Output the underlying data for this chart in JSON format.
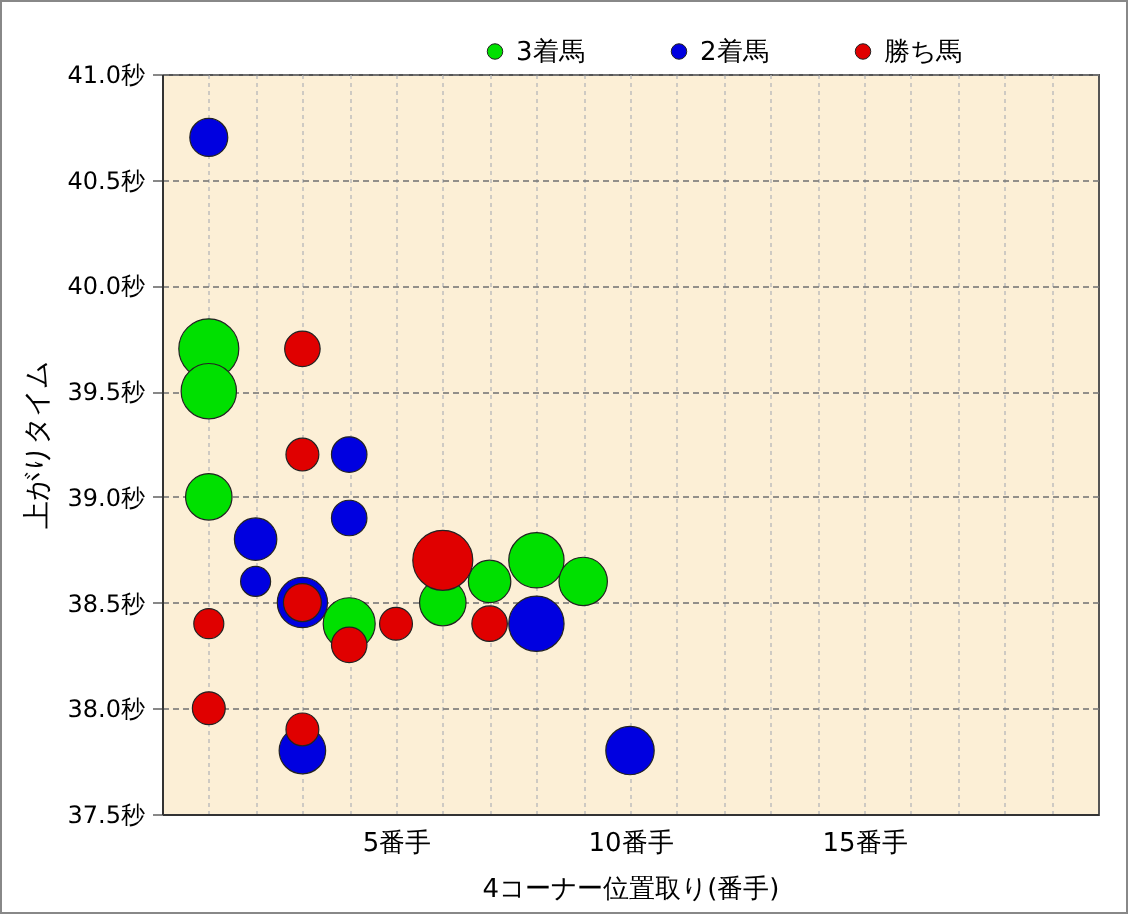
{
  "chart_data": {
    "type": "bubble",
    "xlabel": "4コーナー位置取り(番手)",
    "ylabel": "上がりタイム",
    "xlim": [
      0,
      20
    ],
    "xticks": [
      {
        "value": 1,
        "label": null
      },
      {
        "value": 2,
        "label": null
      },
      {
        "value": 3,
        "label": null
      },
      {
        "value": 4,
        "label": null
      },
      {
        "value": 5,
        "label": "5番手"
      },
      {
        "value": 6,
        "label": null
      },
      {
        "value": 7,
        "label": null
      },
      {
        "value": 8,
        "label": null
      },
      {
        "value": 9,
        "label": null
      },
      {
        "value": 10,
        "label": "10番手"
      },
      {
        "value": 11,
        "label": null
      },
      {
        "value": 12,
        "label": null
      },
      {
        "value": 13,
        "label": null
      },
      {
        "value": 14,
        "label": null
      },
      {
        "value": 15,
        "label": "15番手"
      },
      {
        "value": 16,
        "label": null
      },
      {
        "value": 17,
        "label": null
      },
      {
        "value": 18,
        "label": null
      },
      {
        "value": 19,
        "label": null
      }
    ],
    "ylim": [
      37.5,
      41.0
    ],
    "yticks": [
      {
        "value": 37.5,
        "label": "37.5秒"
      },
      {
        "value": 38.0,
        "label": "38.0秒"
      },
      {
        "value": 38.5,
        "label": "38.5秒"
      },
      {
        "value": 39.0,
        "label": "39.0秒"
      },
      {
        "value": 39.5,
        "label": "39.5秒"
      },
      {
        "value": 40.0,
        "label": "40.0秒"
      },
      {
        "value": 40.5,
        "label": "40.5秒"
      },
      {
        "value": 41.0,
        "label": "41.0秒"
      }
    ],
    "grid": true,
    "legend": "top right",
    "series": [
      {
        "name": "3着馬",
        "color": "#00e000",
        "x": [
          1,
          1,
          1,
          4,
          6,
          7,
          8,
          9
        ],
        "values": [
          39.7,
          39.5,
          39.0,
          38.4,
          38.5,
          38.6,
          38.7,
          38.6
        ],
        "sizes": [
          1,
          0.85,
          0.6,
          0.75,
          0.6,
          0.5,
          0.85,
          0.65
        ]
      },
      {
        "name": "2着馬",
        "color": "#0000e0",
        "x": [
          1,
          4,
          4,
          2,
          2,
          3,
          8,
          3,
          10
        ],
        "values": [
          40.7,
          39.2,
          38.9,
          38.8,
          38.6,
          38.5,
          38.4,
          37.8,
          37.8
        ],
        "sizes": [
          0.4,
          0.35,
          0.35,
          0.5,
          0.25,
          0.7,
          0.85,
          0.6,
          0.65
        ]
      },
      {
        "name": "勝ち馬",
        "color": "#e00000",
        "x": [
          3,
          3,
          1,
          3,
          4,
          5,
          6,
          7,
          1,
          3
        ],
        "values": [
          39.7,
          39.2,
          38.4,
          38.5,
          38.3,
          38.4,
          38.7,
          38.4,
          38.0,
          37.9
        ],
        "sizes": [
          0.35,
          0.3,
          0.25,
          0.4,
          0.35,
          0.3,
          1,
          0.35,
          0.3,
          0.3
        ]
      }
    ]
  }
}
